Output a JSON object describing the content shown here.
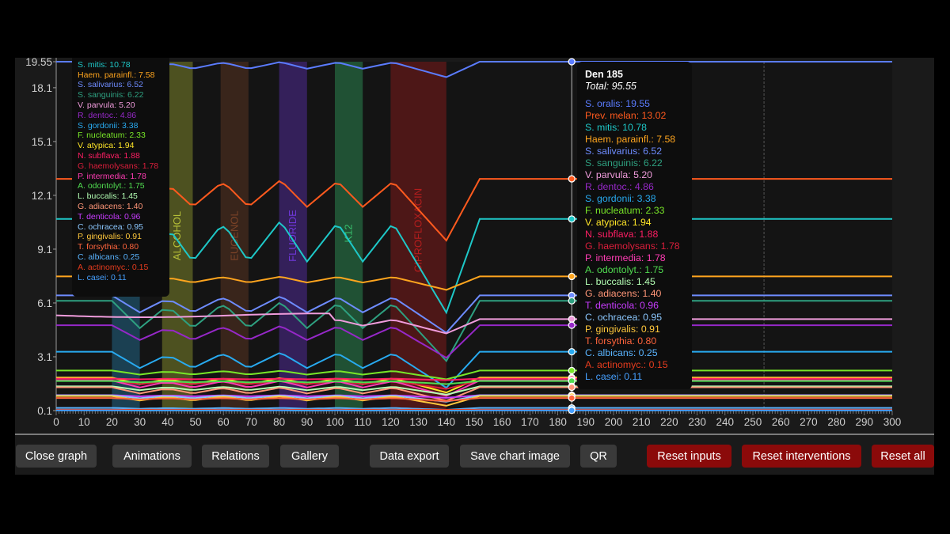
{
  "chart_data": {
    "type": "line",
    "xlim": [
      0,
      300
    ],
    "ylim": [
      0.1,
      19.55
    ],
    "x_ticks": [
      0,
      10,
      20,
      30,
      40,
      50,
      60,
      70,
      80,
      90,
      100,
      110,
      120,
      130,
      140,
      150,
      160,
      170,
      180,
      190,
      200,
      210,
      220,
      230,
      240,
      250,
      260,
      270,
      280,
      290,
      300
    ],
    "y_ticks": [
      "0.1",
      "3.1",
      "6.1",
      "9.1",
      "12.1",
      "15.1",
      "18.1",
      "19.55"
    ],
    "cursor_x": 185,
    "reference_x": 254,
    "interventions": [
      {
        "label": "",
        "start": 20,
        "end": 30,
        "color": "#2aa0d8"
      },
      {
        "label": "ALCOHOL",
        "start": 38,
        "end": 49,
        "color": "#c8d23c"
      },
      {
        "label": "EUGENOL",
        "start": 59,
        "end": 69,
        "color": "#8a4a2a"
      },
      {
        "label": "FLUORIDE",
        "start": 80,
        "end": 90,
        "color": "#7a3cf0"
      },
      {
        "label": "K12",
        "start": 100,
        "end": 110,
        "color": "#3cd278"
      },
      {
        "label": "CIPROFLOXACIN",
        "start": 120,
        "end": 140,
        "color": "#c81e1e"
      }
    ],
    "series": [
      {
        "name": "S. oralis",
        "color": "#5b7cff",
        "value": 19.55
      },
      {
        "name": "Prev. melan",
        "color": "#ff5a1e",
        "value": 13.02
      },
      {
        "name": "S. mitis",
        "color": "#1ec8c8",
        "value": 10.78
      },
      {
        "name": "Haem. parainfl.",
        "color": "#ffa51e",
        "value": 7.58
      },
      {
        "name": "S. salivarius",
        "color": "#6e8cff",
        "value": 6.52
      },
      {
        "name": "S. sanguinis",
        "color": "#2ea080",
        "value": 6.22
      },
      {
        "name": "V. parvula",
        "color": "#f09cdc",
        "value": 5.2
      },
      {
        "name": "R. dentoc.",
        "color": "#9628c8",
        "value": 4.86
      },
      {
        "name": "S. gordonii",
        "color": "#28aaf0",
        "value": 3.38
      },
      {
        "name": "F. nucleatum",
        "color": "#78e628",
        "value": 2.33
      },
      {
        "name": "V. atypica",
        "color": "#ffe628",
        "value": 1.94
      },
      {
        "name": "N. subflava",
        "color": "#ff1e64",
        "value": 1.88
      },
      {
        "name": "G. haemolysans",
        "color": "#dc1e3c",
        "value": 1.78
      },
      {
        "name": "P. intermedia",
        "color": "#ff3cb4",
        "value": 1.78
      },
      {
        "name": "A. odontolyt.",
        "color": "#50dc50",
        "value": 1.75
      },
      {
        "name": "L. buccalis",
        "color": "#b4ffb4",
        "value": 1.45
      },
      {
        "name": "G. adiacens",
        "color": "#ff9678",
        "value": 1.4
      },
      {
        "name": "T. denticola",
        "color": "#c83cff",
        "value": 0.96
      },
      {
        "name": "C. ochracea",
        "color": "#8cc8ff",
        "value": 0.95
      },
      {
        "name": "P. gingivalis",
        "color": "#ffc83c",
        "value": 0.91
      },
      {
        "name": "T. forsythia",
        "color": "#ff643c",
        "value": 0.8
      },
      {
        "name": "C. albicans",
        "color": "#5ab4ff",
        "value": 0.25
      },
      {
        "name": "A. actinomyc.",
        "color": "#e63c1e",
        "value": 0.15
      },
      {
        "name": "L. casei",
        "color": "#46a0ff",
        "value": 0.11
      }
    ]
  },
  "tooltip": {
    "title": "Den 185",
    "total": "Total: 95.55"
  },
  "toolbar": {
    "close_graph": "Close graph",
    "animations": "Animations",
    "relations": "Relations",
    "gallery": "Gallery",
    "data_export": "Data export",
    "save_chart_image": "Save chart image",
    "qr": "QR",
    "reset_inputs": "Reset inputs",
    "reset_interventions": "Reset interventions",
    "reset_all": "Reset all"
  }
}
